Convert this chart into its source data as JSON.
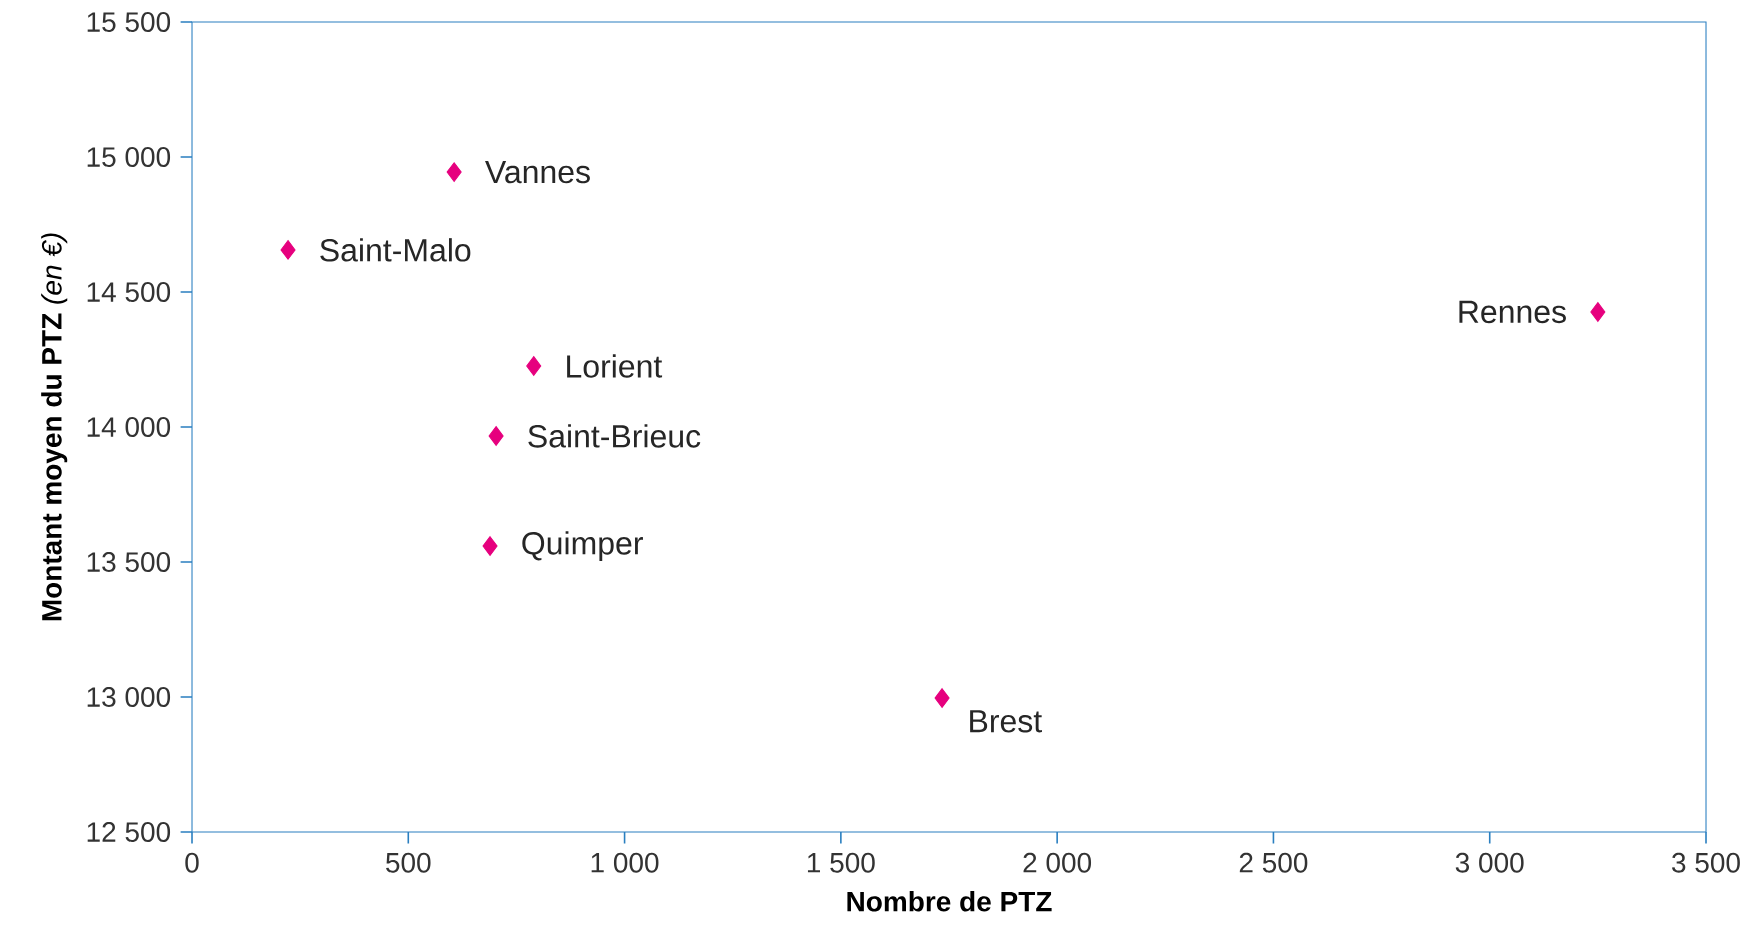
{
  "chart_data": {
    "type": "scatter",
    "xlabel": "Nombre de PTZ",
    "ylabel": "**Montant moyen du PTZ** *(en €)*",
    "x": [
      606,
      222,
      790,
      703,
      689,
      1734,
      3250
    ],
    "values": [
      14944,
      14656,
      14226,
      13967,
      13559,
      12996,
      14426
    ],
    "color": "#e6007e",
    "marker": "diamond",
    "grid": false,
    "xlim": [
      0,
      3500
    ],
    "ylim": [
      12500,
      15500
    ],
    "xticks": [
      0,
      500,
      {
        "value": 1000,
        "label": "1 000"
      },
      {
        "value": 1500,
        "label": "1 500"
      },
      {
        "value": 2000,
        "label": "2 000"
      },
      {
        "value": 2500,
        "label": "2 500"
      },
      {
        "value": 3000,
        "label": "3 000"
      },
      {
        "value": 3500,
        "label": "3 500"
      }
    ],
    "yticks": [
      {
        "value": 12500,
        "label": "12 500"
      },
      {
        "value": 13000,
        "label": "13 000"
      },
      {
        "value": 13500,
        "label": "13 500"
      },
      {
        "value": 14000,
        "label": "14 000"
      },
      {
        "value": 14500,
        "label": "14 500"
      },
      {
        "value": 15000,
        "label": "15 000"
      },
      {
        "value": 15500,
        "label": "15 500"
      }
    ],
    "annotations": [
      {
        "text": "Vannes",
        "x": 606,
        "y": 14944
      },
      {
        "text": "Saint-Malo",
        "x": 222,
        "y": 14656
      },
      {
        "text": "Lorient",
        "x": 790,
        "y": 14226
      },
      {
        "text": "Saint-Brieuc",
        "x": 703,
        "y": 13967
      },
      {
        "text": "Quimper",
        "x": 689,
        "y": 13559
      },
      {
        "text": "Brest",
        "x": 1734,
        "y": 12996
      },
      {
        "text": "Rennes",
        "x": 3250,
        "y": 14426
      }
    ]
  }
}
